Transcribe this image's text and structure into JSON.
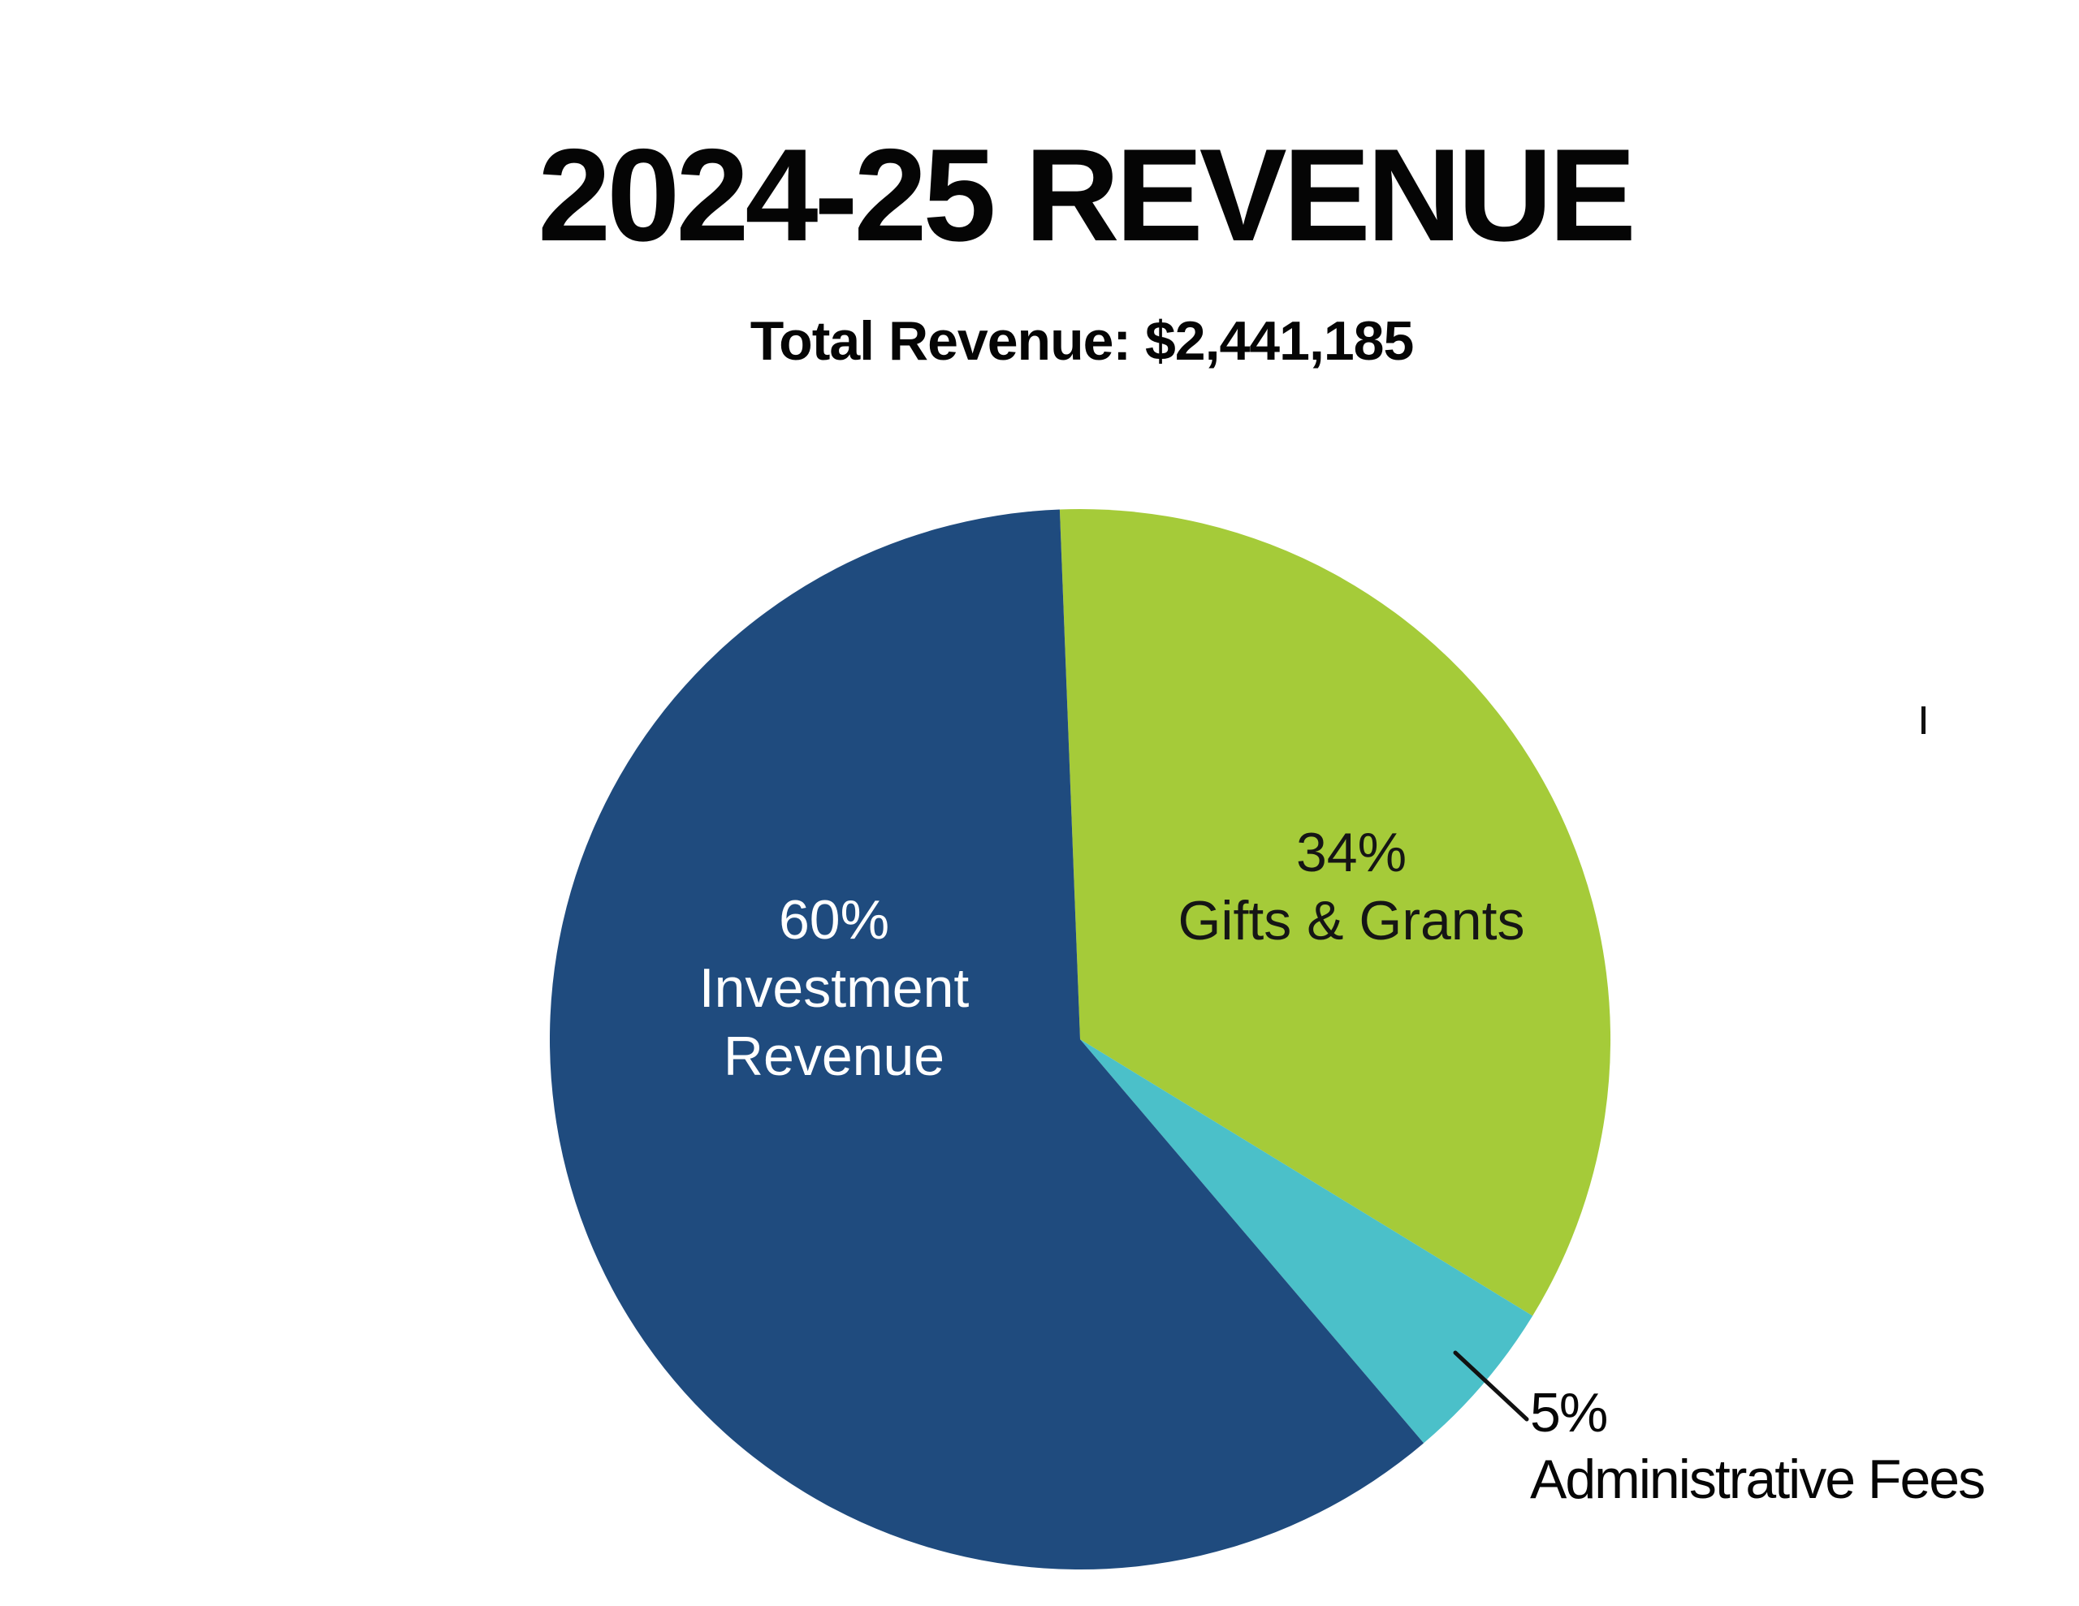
{
  "header": {
    "title": "2024-25 REVENUE",
    "subtitle": "Total Revenue: $2,441,185"
  },
  "chart_data": {
    "type": "pie",
    "title": "2024-25 REVENUE",
    "subtitle": "Total Revenue: $2,441,185",
    "total_revenue_text": "$2,441,185",
    "total_percent_shown": 99,
    "direction": "clockwise",
    "start_angle_deg": -2.2,
    "legend_position": "none",
    "slices": [
      {
        "label": "Gifts & Grants",
        "percent": 34,
        "color": "#A5CB39",
        "label_color": "#151515",
        "label_placement": "inside",
        "label_lines": [
          "34%",
          "Gifts & Grants"
        ]
      },
      {
        "label": "Administrative Fees",
        "percent": 5,
        "color": "#4BC0C9",
        "label_color": "#060606",
        "label_placement": "outside-callout",
        "label_lines": [
          "5%",
          "Administrative Fees"
        ]
      },
      {
        "label": "Investment Revenue",
        "percent": 60,
        "color": "#1F4B7E",
        "label_color": "#FFFFFF",
        "label_placement": "inside",
        "label_lines": [
          "60%",
          "Investment",
          "Revenue"
        ]
      }
    ]
  },
  "annotations": {
    "stray_tick_mark": "|",
    "callout_line_color": "#111111"
  }
}
